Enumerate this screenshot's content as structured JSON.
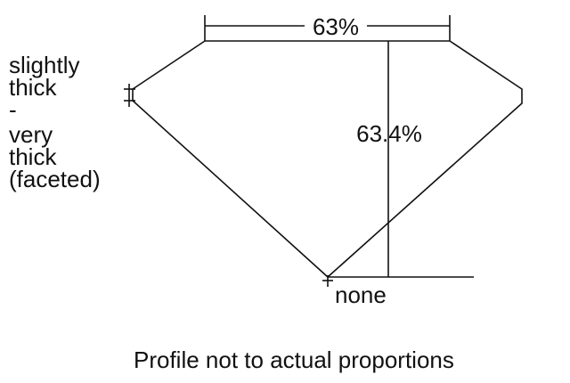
{
  "girdle_label": [
    "slightly",
    "thick",
    "-",
    "very",
    "thick",
    "(faceted)"
  ],
  "table_percent": "63%",
  "depth_percent": "63.4%",
  "culet_label": "none",
  "footer_note": "Profile not to actual proportions"
}
